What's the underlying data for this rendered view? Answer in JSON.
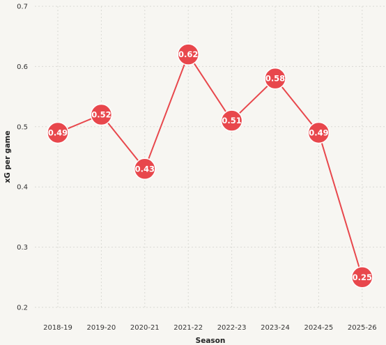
{
  "chart_data": {
    "type": "line",
    "title": "",
    "xlabel": "Season",
    "ylabel": "xG per game",
    "categories": [
      "2018-19",
      "2019-20",
      "2020-21",
      "2021-22",
      "2022-23",
      "2023-24",
      "2024-25",
      "2025-26"
    ],
    "series": [
      {
        "values": [
          0.49,
          0.52,
          0.43,
          0.62,
          0.51,
          0.58,
          0.49,
          0.25
        ],
        "labels": [
          "0.49",
          "0.52",
          "0.43",
          "0.62",
          "0.51",
          "0.58",
          "0.49",
          "0.25"
        ],
        "color": "#e8474c"
      }
    ],
    "ylim": [
      0.2,
      0.7
    ],
    "yticks": [
      0.2,
      0.3,
      0.4,
      0.5,
      0.6,
      0.7
    ],
    "ytick_labels": [
      "0.2",
      "0.3",
      "0.4",
      "0.5",
      "0.6",
      "0.7"
    ],
    "grid": true,
    "legend": "none"
  }
}
